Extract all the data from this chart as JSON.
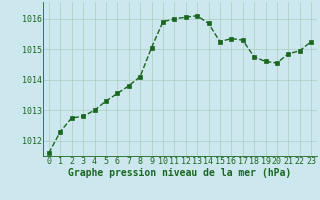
{
  "x": [
    0,
    1,
    2,
    3,
    4,
    5,
    6,
    7,
    8,
    9,
    10,
    11,
    12,
    13,
    14,
    15,
    16,
    17,
    18,
    19,
    20,
    21,
    22,
    23
  ],
  "y": [
    1011.6,
    1012.3,
    1012.75,
    1012.8,
    1013.0,
    1013.3,
    1013.55,
    1013.8,
    1014.1,
    1015.05,
    1015.9,
    1016.0,
    1016.05,
    1016.1,
    1015.85,
    1015.25,
    1015.35,
    1015.3,
    1014.75,
    1014.6,
    1014.55,
    1014.85,
    1014.95,
    1015.25
  ],
  "background_color": "#cce8ee",
  "grid_color": "#aaccc0",
  "line_color": "#1a6620",
  "marker_color": "#1a6620",
  "xlabel": "Graphe pression niveau de la mer (hPa)",
  "xlabel_fontsize": 7,
  "yticks": [
    1012,
    1013,
    1014,
    1015,
    1016
  ],
  "xtick_labels": [
    "0",
    "1",
    "2",
    "3",
    "4",
    "5",
    "6",
    "7",
    "8",
    "9",
    "10",
    "11",
    "12",
    "13",
    "14",
    "15",
    "16",
    "17",
    "18",
    "19",
    "20",
    "21",
    "22",
    "23"
  ],
  "ylim": [
    1011.5,
    1016.55
  ],
  "xlim": [
    -0.5,
    23.5
  ],
  "tick_fontsize": 6.0,
  "line_width": 1.0,
  "marker_size": 2.5
}
